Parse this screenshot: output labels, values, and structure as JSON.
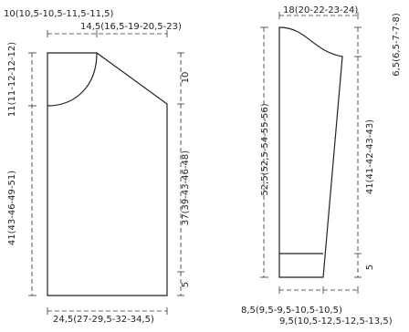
{
  "body_piece": {
    "shoulder_width": "10(10,5-10,5-11,5-11,5)",
    "neck_width": "14,5(16,5-19-20,5-23)",
    "neck_depth": "11(11-12-12-12)",
    "armhole_depth": "10",
    "side_length": "37(39-43-46-48)",
    "body_length": "41(43-46-49-51)",
    "edge_height": "5",
    "bottom_width": "24,5(27-29,5-32-34,5)"
  },
  "sleeve_piece": {
    "top_width": "18(20-22-23-24)",
    "cap_height": "6,5(6,5-7-7-8)",
    "total_length": "52,5(52,5-54-55-56)",
    "sleeve_length": "41(41-42-43-43)",
    "cuff_height": "5",
    "cuff_width": "8,5(9,5-9,5-10,5-10,5)",
    "cuff_width_total": "9,5(10,5-12,5-12,5-13,5)"
  }
}
